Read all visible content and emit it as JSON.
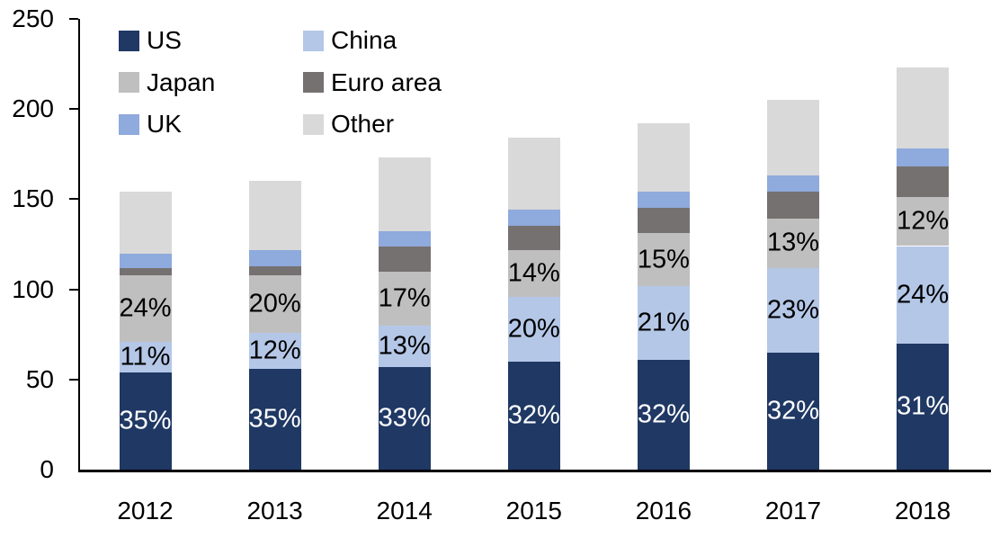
{
  "chart_data": {
    "type": "bar",
    "subtype": "stacked",
    "title": "",
    "xlabel": "",
    "ylabel": "",
    "ylim": [
      0,
      250
    ],
    "y_ticks": [
      "0",
      "50",
      "100",
      "150",
      "200",
      "250"
    ],
    "grid": false,
    "legend_position": "top-left",
    "categories": [
      "2012",
      "2013",
      "2014",
      "2015",
      "2016",
      "2017",
      "2018"
    ],
    "series": [
      {
        "name": "US",
        "color": "#1f3864",
        "values": [
          54,
          56,
          57,
          60,
          61,
          65,
          70
        ],
        "labels": [
          "35%",
          "35%",
          "33%",
          "32%",
          "32%",
          "32%",
          "31%"
        ],
        "label_color": "#ffffff"
      },
      {
        "name": "China",
        "color": "#b4c7e7",
        "values": [
          17,
          20,
          23,
          36,
          41,
          47,
          54
        ],
        "labels": [
          "11%",
          "12%",
          "13%",
          "20%",
          "21%",
          "23%",
          "24%"
        ],
        "label_color": "#000000"
      },
      {
        "name": "Japan",
        "color": "#bfbfbf",
        "values": [
          37,
          32,
          30,
          26,
          29,
          27,
          27
        ],
        "labels": [
          "24%",
          "20%",
          "17%",
          "14%",
          "15%",
          "13%",
          "12%"
        ],
        "label_color": "#000000"
      },
      {
        "name": "Euro area",
        "color": "#767171",
        "values": [
          4,
          5,
          14,
          13,
          14,
          15,
          17
        ],
        "labels": null,
        "label_color": null
      },
      {
        "name": "UK",
        "color": "#8faadc",
        "values": [
          8,
          9,
          8,
          9,
          9,
          9,
          10
        ],
        "labels": null,
        "label_color": null
      },
      {
        "name": "Other",
        "color": "#d9d9d9",
        "values": [
          34,
          38,
          41,
          40,
          38,
          42,
          45
        ],
        "labels": null,
        "label_color": null
      }
    ],
    "totals": [
      154,
      160,
      174,
      184,
      192,
      205,
      223
    ],
    "axis_color": "#000000",
    "text_color": "#000000"
  }
}
